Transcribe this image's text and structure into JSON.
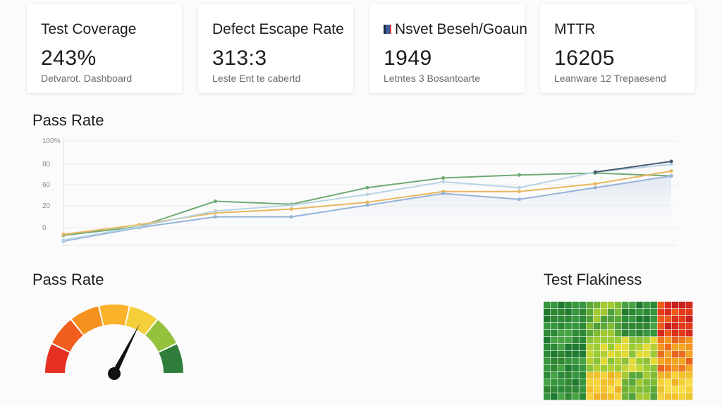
{
  "cards": [
    {
      "title": "Test Coverage",
      "value": "243%",
      "subtitle": "Detvarot. Dashboard"
    },
    {
      "title": "Defect Escape Rate",
      "value": "313:3",
      "subtitle": "Leste Ent te cabertd"
    },
    {
      "title": "Nsvet Beseh/Goaun",
      "value": "1949",
      "subtitle": "Letntes 3 Bosantoarte",
      "icon": "folder-icon"
    },
    {
      "title": "MTTR",
      "value": "16205",
      "subtitle": "Leanware 12 Trepaesend"
    }
  ],
  "sections": {
    "pass_rate_chart_title": "Pass Rate",
    "pass_rate_gauge_title": "Pass Rate",
    "flakiness_title": "Test Flakiness"
  },
  "colors": {
    "green": "#6fab74",
    "orange": "#e8b65d",
    "blue": "#96b3d8",
    "lightblue": "#b8d4e4",
    "navy": "#4a5a70"
  },
  "chart_data": [
    {
      "type": "line",
      "title": "Pass Rate",
      "yticks": [
        "100%",
        "80",
        "60",
        "20",
        "0"
      ],
      "ylim": [
        0,
        100
      ],
      "x": [
        1,
        2,
        3,
        4,
        5,
        6,
        7,
        8,
        9
      ],
      "series": [
        {
          "color": "#6fab74",
          "values": [
            3,
            12,
            38,
            35,
            52,
            62,
            65,
            67,
            64
          ]
        },
        {
          "color": "#e8b65d",
          "values": [
            4,
            14,
            26,
            30,
            37,
            48,
            48,
            56,
            69
          ]
        },
        {
          "color": "#96b3d8",
          "values": [
            -3,
            11,
            22,
            22,
            34,
            46,
            40,
            52,
            64
          ]
        },
        {
          "color": "#b8d4e4",
          "values": [
            -2,
            12,
            28,
            34,
            45,
            58,
            52,
            68,
            76
          ]
        },
        {
          "color": "#4a5a70",
          "values": [
            null,
            null,
            null,
            null,
            null,
            null,
            null,
            68,
            79
          ]
        }
      ],
      "grid": true
    },
    {
      "type": "gauge",
      "title": "Pass Rate",
      "value": 0.65,
      "segments": [
        "#e63022",
        "#f05d1d",
        "#f6901f",
        "#fbb22b",
        "#f4cf3a",
        "#95c13d",
        "#2f7d3a"
      ]
    },
    {
      "type": "heatmap",
      "title": "Test Flakiness",
      "rows": 14,
      "cols": 21,
      "blocks": [
        [
          "green",
          "greenyellow",
          "green",
          "red"
        ],
        [
          "green",
          "yellowgreen",
          "yellowgreen",
          "orange"
        ],
        [
          "green",
          "yellow",
          "greenyellow",
          "yellow"
        ]
      ]
    }
  ]
}
